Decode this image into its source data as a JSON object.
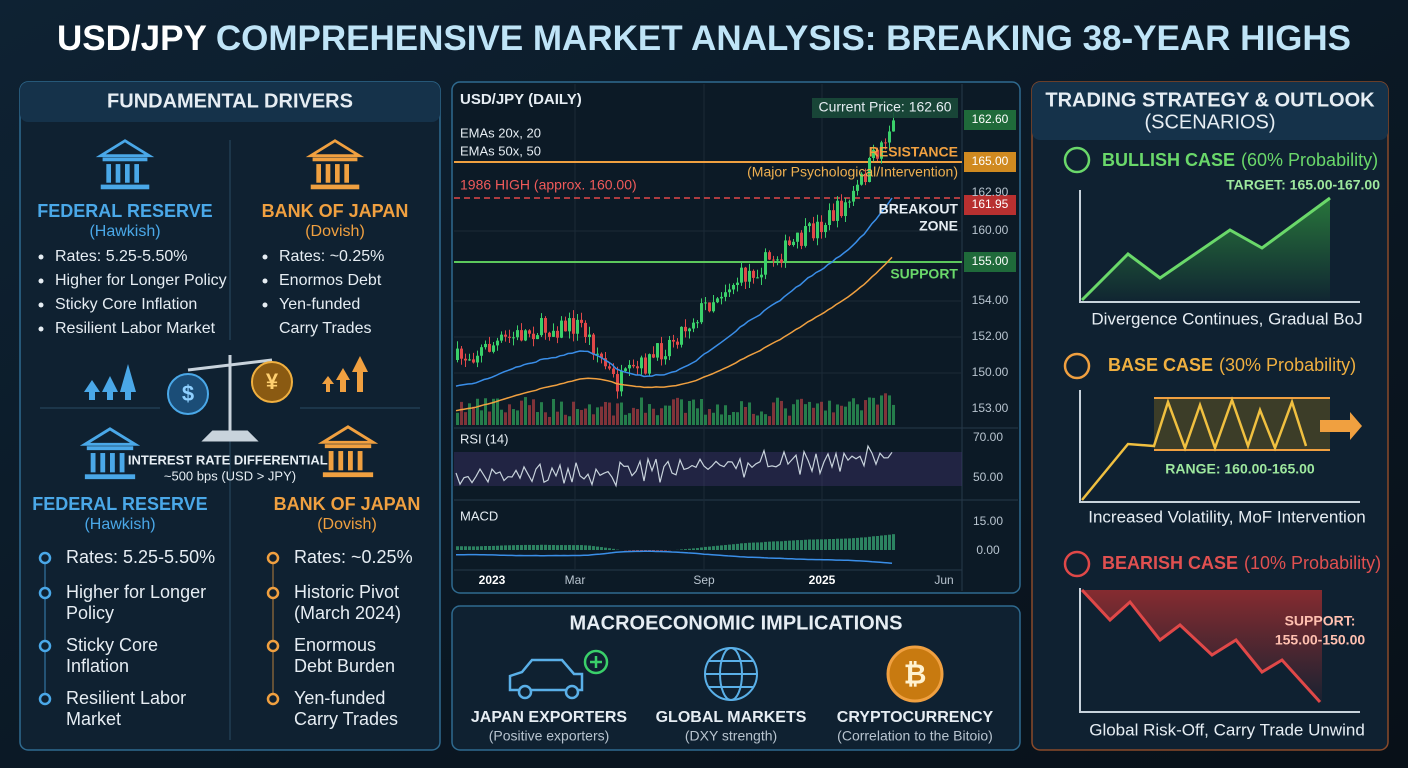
{
  "header": {
    "title_lead": "USD/JPY",
    "title_rest": "COMPREHENSIVE MARKET ANALYSIS: BREAKING 38-YEAR HIGHS"
  },
  "fundamentals": {
    "title": "FUNDAMENTAL DRIVERS",
    "top": [
      {
        "name": "FEDERAL RESERVE",
        "stance": "(Hawkish)",
        "points": [
          "Rates: 5.25-5.50%",
          "Higher for Longer Policy",
          "Sticky Core Inflation",
          "Resilient Labor Market"
        ]
      },
      {
        "name": "BANK OF JAPAN",
        "stance": "(Dovish)",
        "points": [
          "Rates: ~0.25%",
          "Enormos Debt",
          "Yen-funded",
          "Carry Trades"
        ]
      }
    ],
    "scale": {
      "left_symbol": "$",
      "right_symbol": "¥",
      "label": "INTEREST RATE DIFFERENTIAL:",
      "value": "~500 bps (USD > JPY)"
    },
    "bottom": [
      {
        "name": "FEDERAL RESERVE",
        "stance": "(Hawkish)",
        "points": [
          [
            "Rates: 5.25-5.50%"
          ],
          [
            "Higher for Longer",
            "Policy"
          ],
          [
            "Sticky Core",
            "Inflation"
          ],
          [
            "Resilient Labor",
            "Market"
          ]
        ]
      },
      {
        "name": "BANK OF JAPAN",
        "stance": "(Dovish)",
        "points": [
          [
            "Rates: ~0.25%"
          ],
          [
            "Historic Pivot",
            "(March 2024)"
          ],
          [
            "Enormous",
            "Debt Burden"
          ],
          [
            "Yen-funded",
            "Carry Trades"
          ]
        ]
      }
    ]
  },
  "price_chart": {
    "title": "USD/JPY (DAILY)",
    "current_price": "Current Price: 162.60",
    "ema_20": "EMAs 20x, 20",
    "ema_50": "EMAs 50x, 50",
    "resistance": "RESISTANCE",
    "resistance_note": "(Major Psychological/Intervention)",
    "high_1986": "1986 HIGH (approx. 160.00)",
    "breakout": [
      "BREAKOUT",
      "ZONE"
    ],
    "support": "SUPPORT",
    "rsi": "RSI (14)",
    "macd": "MACD",
    "price_labels": [
      "162.60",
      "165.00",
      "162.90",
      "161.95",
      "160.00",
      "155.00",
      "154.00",
      "152.00",
      "150.00",
      "153.00"
    ],
    "rsi_labels": [
      "70.00",
      "50.00"
    ],
    "macd_labels": [
      "15.00",
      "0.00"
    ],
    "x_labels": [
      "2023",
      "Mar",
      "Sep",
      "2025",
      "Jun"
    ]
  },
  "macro": {
    "title": "MACROECONOMIC IMPLICATIONS",
    "crypto_symbol": "₿",
    "items": [
      {
        "name": "JAPAN EXPORTERS",
        "note": "(Positive exporters)"
      },
      {
        "name": "GLOBAL MARKETS",
        "note": "(DXY strength)"
      },
      {
        "name": "CRYPTOCURRENCY",
        "note": "(Correlation to the Bitoio)"
      }
    ]
  },
  "strategy": {
    "title": "TRADING STRATEGY & OUTLOOK",
    "subtitle": "(SCENARIOS)",
    "scenarios": [
      {
        "name": "BULLISH CASE",
        "prob": "(60% Probability)",
        "level": "TARGET: 165.00-167.00",
        "caption": "Divergence Continues, Gradual BoJ"
      },
      {
        "name": "BASE CASE",
        "prob": "(30% Probability)",
        "level": "RANGE: 160.00-165.00",
        "caption": "Increased Volatility, MoF Intervention"
      },
      {
        "name": "BEARISH CASE",
        "prob": "(10% Probability)",
        "level": "SUPPORT:",
        "level2": "155.00-150.00",
        "caption": "Global Risk-Off, Carry Trade Unwind"
      }
    ]
  }
}
